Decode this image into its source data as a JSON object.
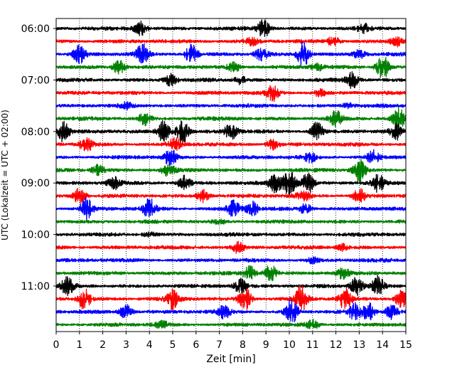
{
  "chart_data": {
    "type": "line",
    "title": "",
    "xlabel": "Zeit  [min]",
    "ylabel": "UTC (Lokalzeit = UTC + 02:00)",
    "xlim": [
      0,
      15
    ],
    "x_ticks": [
      "0",
      "1",
      "2",
      "3",
      "4",
      "5",
      "6",
      "7",
      "8",
      "9",
      "10",
      "11",
      "12",
      "13",
      "14",
      "15"
    ],
    "y_ticks": [
      "06:00",
      "07:00",
      "08:00",
      "09:00",
      "10:00",
      "11:00"
    ],
    "grid": "vertical dotted lines at each minute",
    "trace_interval_minutes": 15,
    "trace_color_cycle": [
      "#000000",
      "#ff0000",
      "#0000ff",
      "#008000"
    ],
    "traces": [
      {
        "start": "06:00",
        "color": "#000000",
        "bursts": [
          {
            "t": 3.6,
            "a": 1.2
          },
          {
            "t": 8.9,
            "a": 1.5
          },
          {
            "t": 13.2,
            "a": 0.6
          }
        ]
      },
      {
        "start": "06:15",
        "color": "#ff0000",
        "bursts": [
          {
            "t": 8.4,
            "a": 0.6
          },
          {
            "t": 11.9,
            "a": 0.8
          },
          {
            "t": 14.6,
            "a": 0.7
          }
        ]
      },
      {
        "start": "06:30",
        "color": "#0000ff",
        "bursts": [
          {
            "t": 1.0,
            "a": 1.4
          },
          {
            "t": 3.7,
            "a": 1.6
          },
          {
            "t": 5.8,
            "a": 1.5
          },
          {
            "t": 8.8,
            "a": 0.8
          },
          {
            "t": 10.6,
            "a": 2.0
          },
          {
            "t": 13.0,
            "a": 0.7
          }
        ]
      },
      {
        "start": "06:45",
        "color": "#008000",
        "bursts": [
          {
            "t": 2.7,
            "a": 1.1
          },
          {
            "t": 7.6,
            "a": 0.8
          },
          {
            "t": 11.2,
            "a": 0.5
          },
          {
            "t": 14.0,
            "a": 2.0
          }
        ]
      },
      {
        "start": "07:00",
        "color": "#000000",
        "bursts": [
          {
            "t": 4.9,
            "a": 0.9
          },
          {
            "t": 7.9,
            "a": 0.6
          },
          {
            "t": 12.7,
            "a": 1.2
          }
        ]
      },
      {
        "start": "07:15",
        "color": "#ff0000",
        "bursts": [
          {
            "t": 9.3,
            "a": 1.2
          },
          {
            "t": 11.3,
            "a": 0.5
          }
        ]
      },
      {
        "start": "07:30",
        "color": "#0000ff",
        "bursts": [
          {
            "t": 3.0,
            "a": 0.4
          },
          {
            "t": 12.5,
            "a": 0.4
          }
        ]
      },
      {
        "start": "07:45",
        "color": "#008000",
        "bursts": [
          {
            "t": 3.8,
            "a": 1.0
          },
          {
            "t": 12.0,
            "a": 1.1
          },
          {
            "t": 14.7,
            "a": 1.6
          }
        ]
      },
      {
        "start": "08:00",
        "color": "#000000",
        "bursts": [
          {
            "t": 0.3,
            "a": 1.5
          },
          {
            "t": 4.6,
            "a": 1.6
          },
          {
            "t": 5.4,
            "a": 1.9
          },
          {
            "t": 7.5,
            "a": 1.4
          },
          {
            "t": 11.2,
            "a": 1.5
          },
          {
            "t": 14.6,
            "a": 1.2
          }
        ]
      },
      {
        "start": "08:15",
        "color": "#ff0000",
        "bursts": [
          {
            "t": 1.3,
            "a": 1.1
          },
          {
            "t": 5.1,
            "a": 0.9
          },
          {
            "t": 9.3,
            "a": 0.9
          }
        ]
      },
      {
        "start": "08:30",
        "color": "#0000ff",
        "bursts": [
          {
            "t": 4.9,
            "a": 1.3
          },
          {
            "t": 10.9,
            "a": 0.8
          },
          {
            "t": 13.6,
            "a": 1.1
          }
        ]
      },
      {
        "start": "08:45",
        "color": "#008000",
        "bursts": [
          {
            "t": 1.8,
            "a": 0.8
          },
          {
            "t": 4.8,
            "a": 1.0
          },
          {
            "t": 13.0,
            "a": 1.8
          }
        ]
      },
      {
        "start": "09:00",
        "color": "#000000",
        "bursts": [
          {
            "t": 2.5,
            "a": 1.0
          },
          {
            "t": 5.5,
            "a": 1.1
          },
          {
            "t": 9.4,
            "a": 1.4
          },
          {
            "t": 10.0,
            "a": 2.0
          },
          {
            "t": 10.8,
            "a": 1.6
          },
          {
            "t": 13.8,
            "a": 1.3
          }
        ]
      },
      {
        "start": "09:15",
        "color": "#ff0000",
        "bursts": [
          {
            "t": 1.0,
            "a": 1.2
          },
          {
            "t": 6.3,
            "a": 1.0
          },
          {
            "t": 10.6,
            "a": 0.9
          },
          {
            "t": 13.0,
            "a": 1.1
          }
        ]
      },
      {
        "start": "09:30",
        "color": "#0000ff",
        "bursts": [
          {
            "t": 1.3,
            "a": 1.6
          },
          {
            "t": 4.0,
            "a": 1.5
          },
          {
            "t": 7.6,
            "a": 1.2
          },
          {
            "t": 8.4,
            "a": 1.1
          },
          {
            "t": 10.7,
            "a": 0.8
          }
        ]
      },
      {
        "start": "09:45",
        "color": "#008000",
        "bursts": [
          {
            "t": 7.0,
            "a": 0.3
          }
        ]
      },
      {
        "start": "10:00",
        "color": "#000000",
        "bursts": [
          {
            "t": 4.0,
            "a": 0.3
          }
        ]
      },
      {
        "start": "10:15",
        "color": "#ff0000",
        "bursts": [
          {
            "t": 7.8,
            "a": 0.8
          },
          {
            "t": 12.3,
            "a": 0.5
          }
        ]
      },
      {
        "start": "10:30",
        "color": "#0000ff",
        "bursts": [
          {
            "t": 11.0,
            "a": 0.4
          }
        ]
      },
      {
        "start": "10:45",
        "color": "#008000",
        "bursts": [
          {
            "t": 8.3,
            "a": 1.1
          },
          {
            "t": 9.2,
            "a": 1.3
          },
          {
            "t": 12.3,
            "a": 0.8
          }
        ]
      },
      {
        "start": "11:00",
        "color": "#000000",
        "bursts": [
          {
            "t": 0.5,
            "a": 1.4
          },
          {
            "t": 7.9,
            "a": 1.1
          },
          {
            "t": 12.9,
            "a": 1.4
          },
          {
            "t": 13.8,
            "a": 1.5
          }
        ]
      },
      {
        "start": "11:15",
        "color": "#ff0000",
        "bursts": [
          {
            "t": 1.2,
            "a": 1.6
          },
          {
            "t": 5.0,
            "a": 1.5
          },
          {
            "t": 8.1,
            "a": 1.8
          },
          {
            "t": 10.5,
            "a": 2.0
          },
          {
            "t": 12.4,
            "a": 1.7
          },
          {
            "t": 14.8,
            "a": 1.4
          }
        ]
      },
      {
        "start": "11:30",
        "color": "#0000ff",
        "bursts": [
          {
            "t": 3.0,
            "a": 1.1
          },
          {
            "t": 7.2,
            "a": 1.0
          },
          {
            "t": 10.1,
            "a": 2.0
          },
          {
            "t": 12.8,
            "a": 1.2
          },
          {
            "t": 13.4,
            "a": 1.4
          },
          {
            "t": 14.4,
            "a": 1.1
          }
        ]
      },
      {
        "start": "11:45",
        "color": "#008000",
        "bursts": [
          {
            "t": 4.5,
            "a": 0.6
          },
          {
            "t": 11.0,
            "a": 0.7
          }
        ]
      }
    ]
  }
}
